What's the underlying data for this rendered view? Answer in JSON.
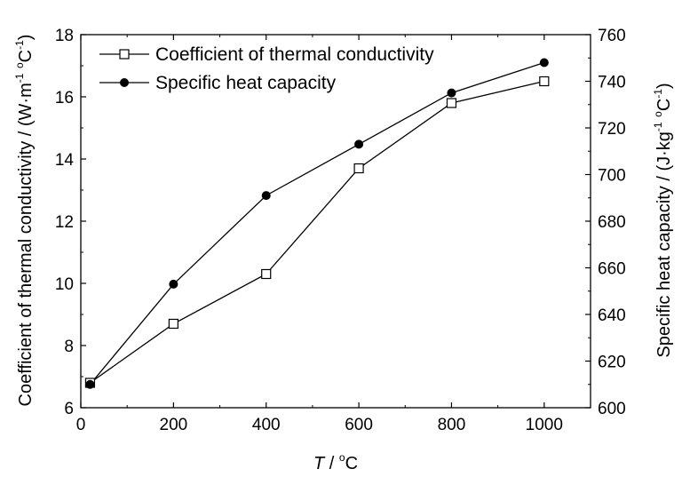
{
  "chart_data": {
    "type": "line",
    "x": [
      20,
      200,
      400,
      600,
      800,
      1000
    ],
    "xlim": [
      0,
      1100
    ],
    "xticks": [
      0,
      200,
      400,
      600,
      800,
      1000
    ],
    "xlabel": {
      "italic": "T",
      "sep": " / ",
      "sup": "o",
      "unit": "C"
    },
    "ylabel_left": {
      "text": "Coefficient of thermal conductivity / (W·m",
      "sup1": "-1",
      "mid": " ",
      "sup2": "o",
      "end": "C",
      "sup3": "-1",
      "close": ")"
    },
    "ylabel_right": {
      "text": "Specific heat capacity / (J·kg",
      "sup1": "-1",
      "mid": " ",
      "sup2": "o",
      "end": "C",
      "sup3": "-1",
      "close": ")"
    },
    "ylim_left": [
      6,
      18
    ],
    "yticks_left": [
      6,
      8,
      10,
      12,
      14,
      16,
      18
    ],
    "ylim_right": [
      600,
      760
    ],
    "yticks_right": [
      600,
      620,
      640,
      660,
      680,
      700,
      720,
      740,
      760
    ],
    "legend_position": "top-left",
    "grid": false,
    "series": [
      {
        "name": "Coefficient of thermal conductivity",
        "axis": "left",
        "marker": "open-square",
        "values": [
          6.8,
          8.7,
          10.3,
          13.7,
          15.8,
          16.5
        ]
      },
      {
        "name": "Specific heat capacity",
        "axis": "right",
        "marker": "filled-circle",
        "values": [
          610,
          653,
          691,
          713,
          735,
          748
        ]
      }
    ]
  }
}
